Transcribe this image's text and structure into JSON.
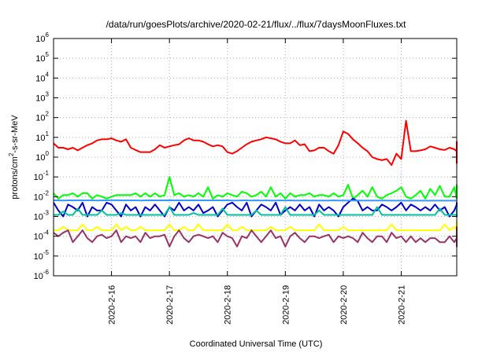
{
  "chart_data": {
    "type": "line",
    "title": "/data/run/goesPlots/archive/2020-02-21/flux/../flux/7daysMoonFluxes.txt",
    "xlabel": "Coordinated Universal Time (UTC)",
    "ylabel": {
      "prefix": "protons/cm",
      "sup": "2",
      "suffix": "-s-sr-MeV"
    },
    "yscale": "log",
    "ylim": [
      1e-06,
      1000000.0
    ],
    "y_ticks": [
      {
        "base": "10",
        "exp": "-6",
        "value": 1e-06
      },
      {
        "base": "10",
        "exp": "-5",
        "value": 1e-05
      },
      {
        "base": "10",
        "exp": "-4",
        "value": 0.0001
      },
      {
        "base": "10",
        "exp": "-3",
        "value": 0.001
      },
      {
        "base": "10",
        "exp": "-2",
        "value": 0.01
      },
      {
        "base": "10",
        "exp": "-1",
        "value": 0.1
      },
      {
        "base": "10",
        "exp": "0",
        "value": 1
      },
      {
        "base": "10",
        "exp": "1",
        "value": 10
      },
      {
        "base": "10",
        "exp": "2",
        "value": 100
      },
      {
        "base": "10",
        "exp": "3",
        "value": 1000
      },
      {
        "base": "10",
        "exp": "4",
        "value": 10000
      },
      {
        "base": "10",
        "exp": "5",
        "value": 100000
      },
      {
        "base": "10",
        "exp": "6",
        "value": 1000000
      }
    ],
    "xlim": [
      "2020-02-15T00:00",
      "2020-02-21T23:00"
    ],
    "x_ticks": [
      "2020-2-16",
      "2020-2-17",
      "2020-2-18",
      "2020-2-19",
      "2020-2-20",
      "2020-2-21"
    ],
    "x_tick_values": [
      "2020-02-16T00:00",
      "2020-02-17T00:00",
      "2020-02-18T00:00",
      "2020-02-19T00:00",
      "2020-02-20T00:00",
      "2020-02-21T00:00"
    ],
    "grid": true,
    "x_start": "2020-02-15T00:00",
    "x_step_hours": 2,
    "series": [
      {
        "color": "#ff0000",
        "width": 2,
        "values": [
          5,
          3,
          3,
          2.5,
          3,
          2.2,
          3,
          4,
          5,
          7,
          8,
          8,
          9,
          7,
          6,
          8,
          3,
          2.3,
          1.8,
          1.8,
          1.8,
          2.5,
          4,
          3,
          3.5,
          4,
          4.5,
          7,
          9,
          7,
          7,
          6,
          4.5,
          3.5,
          4,
          3.5,
          1.8,
          1.5,
          2,
          3,
          4.5,
          6,
          7,
          8,
          10,
          9,
          8,
          6,
          5,
          5,
          7,
          4,
          4.5,
          2,
          2.2,
          3,
          3,
          2,
          1.5,
          4,
          20,
          15,
          8,
          5,
          3,
          2,
          1,
          0.8,
          0.7,
          0.8,
          0.4,
          1.5,
          0.8,
          70,
          2,
          2,
          2.2,
          2.5,
          3.5,
          3,
          2.5,
          2.3,
          3,
          2.5,
          2,
          2.2,
          2,
          1.5,
          1.5,
          0.8,
          1,
          0.9,
          1.2,
          1.2,
          1.5,
          1.5,
          3,
          3,
          2,
          1.2,
          3.5,
          6,
          5.5,
          1,
          1,
          0.7,
          0.6,
          0.6,
          0.5,
          1,
          0.5,
          0.6,
          1.5,
          1.5,
          2,
          3,
          5,
          4,
          3,
          3
        ]
      },
      {
        "color": "#00ff00",
        "width": 2,
        "values": [
          0.015,
          0.008,
          0.012,
          0.012,
          0.015,
          0.01,
          0.015,
          0.015,
          0.008,
          0.012,
          0.01,
          0.008,
          0.01,
          0.012,
          0.012,
          0.012,
          0.012,
          0.015,
          0.01,
          0.015,
          0.01,
          0.015,
          0.01,
          0.012,
          0.1,
          0.012,
          0.015,
          0.01,
          0.012,
          0.01,
          0.015,
          0.01,
          0.03,
          0.008,
          0.012,
          0.01,
          0.015,
          0.012,
          0.01,
          0.018,
          0.015,
          0.01,
          0.012,
          0.018,
          0.01,
          0.03,
          0.01,
          0.015,
          0.008,
          0.015,
          0.01,
          0.012,
          0.012,
          0.015,
          0.01,
          0.012,
          0.012,
          0.01,
          0.015,
          0.01,
          0.012,
          0.04,
          0.008,
          0.012,
          0.02,
          0.01,
          0.03,
          0.01,
          0.008,
          0.012,
          0.015,
          0.02,
          0.03,
          0.01,
          0.008,
          0.012,
          0.02,
          0.008,
          0.025,
          0.012,
          0.035,
          0.01,
          0.01,
          0.03,
          0.008,
          0.03,
          0.01,
          0.008,
          0.02,
          0.01,
          0.035,
          0.01,
          0.015,
          0.008,
          0.03,
          0.03,
          0.008,
          0.012,
          0.02,
          0.01,
          0.035,
          0.01,
          0.015,
          0.008,
          0.015,
          0.04,
          0.01,
          0.012,
          0.008,
          0.015,
          0.01,
          0.025,
          0.01,
          0.01,
          0.012,
          0.01,
          0.02,
          0.008,
          0.015,
          0.03,
          0.01,
          0.01,
          0.012,
          0.035
        ]
      },
      {
        "color": "#0000cc",
        "width": 2,
        "values": [
          0.005,
          0.002,
          0.001,
          0.004,
          0.003,
          0.002,
          0.005,
          0.001,
          0.003,
          0.002,
          0.002,
          0.005,
          0.004,
          0.002,
          0.001,
          0.004,
          0.002,
          0.003,
          0.001,
          0.003,
          0.002,
          0.004,
          0.002,
          0.001,
          0.003,
          0.002,
          0.005,
          0.002,
          0.003,
          0.002,
          0.004,
          0.0015,
          0.002,
          0.003,
          0.001,
          0.002,
          0.004,
          0.005,
          0.003,
          0.002,
          0.005,
          0.001,
          0.002,
          0.004,
          0.003,
          0.002,
          0.005,
          0.0012,
          0.002,
          0.003,
          0.002,
          0.004,
          0.002,
          0.003,
          0.001,
          0.004,
          0.002,
          0.003,
          0.002,
          0.001,
          0.003,
          0.005,
          0.008,
          0.006,
          0.002,
          0.003,
          0.002,
          0.002,
          0.004,
          0.003,
          0.002,
          0.003,
          0.005,
          0.002,
          0.004,
          0.003,
          0.002,
          0.003,
          0.002,
          0.004,
          0.002,
          0.003,
          0.001,
          0.002,
          0.004,
          0.003,
          0.001,
          0.005,
          0.002,
          0.003,
          0.002,
          0.004,
          0.002,
          0.001,
          0.003,
          0.004,
          0.002,
          0.005,
          0.003,
          0.002,
          0.004,
          0.002,
          0.003,
          0.004,
          0.005,
          0.003,
          0.002,
          0.001,
          0.004,
          0.003,
          0.002,
          0.004,
          0.002,
          0.003,
          0.001,
          0.005,
          0.002,
          0.003,
          0.004,
          0.002,
          0.003,
          0.002,
          0.002,
          0.004
        ]
      },
      {
        "color": "#3399ff",
        "width": 2,
        "values": [
          0.0065,
          0.0065,
          0.0064,
          0.0066,
          0.0065,
          0.0066,
          0.0065,
          0.0065,
          0.0066,
          0.0064,
          0.0065,
          0.0065,
          0.0066,
          0.0066,
          0.0065,
          0.0065,
          0.0065,
          0.0065,
          0.0064,
          0.0065,
          0.0066,
          0.0065,
          0.0065,
          0.0065,
          0.0066,
          0.0065,
          0.0066,
          0.0065,
          0.0065,
          0.0066,
          0.0065,
          0.0065,
          0.0065,
          0.0065,
          0.0065,
          0.0065,
          0.0065,
          0.0064,
          0.0064,
          0.0065,
          0.0065,
          0.0064,
          0.0065,
          0.0064,
          0.0065,
          0.0064,
          0.0064,
          0.0065,
          0.0064,
          0.0065,
          0.0064,
          0.0064,
          0.0065,
          0.0064,
          0.0064,
          0.0064,
          0.0064,
          0.0064,
          0.0065,
          0.0064,
          0.0064,
          0.0064,
          0.0064,
          0.0064,
          0.0064,
          0.0064,
          0.0064,
          0.0064,
          0.0064,
          0.0064,
          0.0063,
          0.0063,
          0.0063,
          0.0063,
          0.0063,
          0.0063,
          0.0063,
          0.0063,
          0.0063,
          0.0063,
          0.0063,
          0.0063,
          0.0063,
          0.0063,
          0.0063,
          0.0063,
          0.0063,
          0.0063,
          0.0062,
          0.0062,
          0.0062,
          0.0062,
          0.0062,
          0.0062,
          0.0062,
          0.0062,
          0.0062,
          0.0062,
          0.0062,
          0.0061,
          0.0061,
          0.0061,
          0.0061,
          0.0061,
          0.0061,
          0.0061,
          0.0061,
          0.0061,
          0.0061,
          0.0061,
          0.0061,
          0.0061,
          0.006,
          0.006,
          0.006,
          0.006,
          0.006,
          0.006,
          0.006,
          0.006,
          0.006,
          0.006,
          0.006,
          0.006
        ]
      },
      {
        "color": "#00c0a0",
        "width": 2,
        "values": [
          0.0012,
          0.0012,
          0.0018,
          0.0012,
          0.0012,
          0.0025,
          0.0012,
          0.0012,
          0.0012,
          0.0012,
          0.002,
          0.0012,
          0.0012,
          0.0012,
          0.0015,
          0.0012,
          0.0012,
          0.0012,
          0.0012,
          0.0012,
          0.0012,
          0.0012,
          0.0012,
          0.0012,
          0.003,
          0.0012,
          0.0012,
          0.0012,
          0.0012,
          0.0015,
          0.0012,
          0.0012,
          0.0012,
          0.0012,
          0.0012,
          0.0025,
          0.0012,
          0.0012,
          0.0012,
          0.0012,
          0.0012,
          0.0012,
          0.002,
          0.0012,
          0.0012,
          0.0012,
          0.0012,
          0.0012,
          0.003,
          0.0012,
          0.0012,
          0.0012,
          0.0012,
          0.0012,
          0.0012,
          0.002,
          0.0012,
          0.0012,
          0.0012,
          0.0012,
          0.0012,
          0.0012,
          0.0012,
          0.0012,
          0.0012,
          0.0012,
          0.0012,
          0.003,
          0.0012,
          0.0012,
          0.0012,
          0.0012,
          0.0012,
          0.0012,
          0.0012,
          0.0012,
          0.0012,
          0.0012,
          0.0012,
          0.0012,
          0.0025,
          0.0012,
          0.0012,
          0.0012,
          0.0012,
          0.0012,
          0.0012,
          0.0012,
          0.003,
          0.0012,
          0.0012,
          0.0012,
          0.0012,
          0.0012,
          0.0012,
          0.0012,
          0.0012,
          0.0012,
          0.0012,
          0.003,
          0.0012,
          0.0012,
          0.0012,
          0.0012,
          0.0012,
          0.0012,
          0.0012,
          0.0012,
          0.0012,
          0.0012,
          0.003,
          0.0012,
          0.0012,
          0.0012,
          0.0012,
          0.0012,
          0.0012,
          0.0012,
          0.0012,
          0.002,
          0.0012,
          0.0012,
          0.0012,
          0.0012
        ]
      },
      {
        "color": "#ffff00",
        "width": 2,
        "values": [
          0.0002,
          0.0002,
          0.0003,
          0.0002,
          0.0002,
          0.0002,
          0.0004,
          0.0002,
          0.0002,
          0.0003,
          0.0002,
          0.0002,
          0.0002,
          0.0004,
          0.0002,
          0.0003,
          0.0002,
          0.0002,
          0.0003,
          0.0002,
          0.0002,
          0.0002,
          0.0002,
          0.0002,
          0.0004,
          0.0002,
          0.0002,
          0.0003,
          0.0002,
          0.0002,
          0.0004,
          0.0002,
          0.0002,
          0.0002,
          0.0002,
          0.0002,
          0.0004,
          0.0002,
          0.0002,
          0.0003,
          0.0002,
          0.0002,
          0.0002,
          0.0002,
          0.0002,
          0.0003,
          0.0002,
          0.0002,
          0.0002,
          0.0003,
          0.0002,
          0.0002,
          0.0002,
          0.0002,
          0.0002,
          0.0004,
          0.0002,
          0.0002,
          0.0002,
          0.0002,
          0.0003,
          0.0002,
          0.0002,
          0.0002,
          0.0002,
          0.0002,
          0.0002,
          0.0002,
          0.0002,
          0.0002,
          0.0004,
          0.0002,
          0.0002,
          0.0002,
          0.0002,
          0.0002,
          0.0002,
          0.0002,
          0.0002,
          0.0002,
          0.0002,
          0.0004,
          0.0002,
          0.0003,
          0.0002,
          0.0002,
          0.0002,
          0.0002,
          0.0002,
          0.0002,
          0.0002,
          0.0002,
          0.0002,
          0.0002,
          0.0002,
          0.0002,
          0.0002,
          0.0002,
          0.0002,
          0.0002,
          0.0002,
          0.0002,
          0.0002,
          0.0002,
          0.0002,
          0.0006,
          0.0002,
          0.0002,
          0.0002,
          0.0002,
          0.0003,
          0.0002,
          0.0002,
          0.0002,
          0.0002,
          0.0002,
          0.0002,
          0.0002,
          0.0002,
          0.0002,
          0.0002,
          0.0002,
          0.0002,
          0.0002
        ]
      },
      {
        "color": "#993366",
        "width": 2,
        "values": [
          0.00015,
          0.0001,
          0.00015,
          0.0002,
          5e-05,
          0.0001,
          0.0002,
          8e-05,
          5e-05,
          0.0001,
          0.00012,
          8e-05,
          0.0001,
          0.0002,
          5e-05,
          0.0001,
          8e-05,
          0.0001,
          5e-05,
          0.00015,
          8e-05,
          0.0001,
          0.0001,
          0.00012,
          3e-05,
          0.0001,
          0.0002,
          8e-05,
          5e-05,
          0.0001,
          0.00012,
          0.0001,
          8e-05,
          0.0001,
          5e-05,
          0.00015,
          0.0001,
          8e-05,
          3e-05,
          0.0001,
          8e-05,
          0.0002,
          0.0001,
          5e-05,
          0.0001,
          0.0002,
          8e-05,
          0.0001,
          3e-05,
          0.0001,
          0.00015,
          8e-05,
          5e-05,
          0.0001,
          0.0001,
          8e-05,
          0.0001,
          0.00012,
          5e-05,
          0.0001,
          8e-05,
          0.0001,
          8e-05,
          5e-05,
          0.00015,
          8e-05,
          5e-05,
          0.0001,
          0.0001,
          5e-05,
          0.00015,
          8e-05,
          0.0001,
          5e-05,
          0.0001,
          5e-05,
          8e-05,
          5e-05,
          8e-05,
          8e-05,
          5e-05,
          5e-05,
          0.0001,
          5e-05,
          8e-05,
          8e-05,
          3e-05,
          8e-05,
          8e-05,
          0.00015,
          5e-05,
          0.0001,
          8e-05,
          0.00015,
          5e-05,
          8e-05,
          8e-05,
          3e-05,
          0.0001,
          0.0001,
          0.0003,
          5e-05,
          8e-05,
          0.0001,
          0.00015,
          8e-05,
          8e-05,
          0.0001,
          5e-05,
          0.00012,
          8e-05,
          5e-05,
          8e-05,
          0.00015,
          8e-05,
          0.0001,
          5e-05,
          0.0001,
          0.0001,
          5e-05,
          8e-05,
          0.00015,
          0.0002,
          0.0002
        ]
      }
    ]
  }
}
